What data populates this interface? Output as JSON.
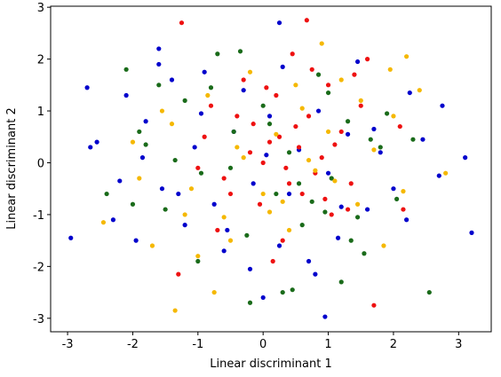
{
  "chart_data": {
    "type": "scatter",
    "xlabel": "Linear discriminant 1",
    "ylabel": "Linear discriminant 2",
    "xlim": [
      -3.26,
      3.5
    ],
    "ylim": [
      -3.26,
      3.02
    ],
    "xticks": [
      -3,
      -2,
      -1,
      0,
      1,
      2,
      3
    ],
    "yticks": [
      -3,
      -2,
      -1,
      0,
      1,
      2,
      3
    ],
    "series": [
      {
        "color": "#0000cc",
        "x": [
          -2.95,
          3.2,
          0.95,
          2.75,
          3.1,
          -2.7,
          -2.55,
          -2.3,
          -2.1,
          -1.95,
          -1.8,
          -1.6,
          -1.55,
          -1.4,
          -1.2,
          -1.05,
          -0.9,
          -0.75,
          -0.6,
          -0.45,
          -0.3,
          -0.15,
          0.0,
          0.1,
          0.25,
          0.4,
          0.55,
          0.7,
          0.85,
          1.0,
          1.15,
          1.3,
          1.45,
          1.6,
          1.8,
          2.0,
          2.25,
          2.45,
          2.7,
          -2.2,
          -1.85,
          -1.3,
          -0.95,
          -0.2,
          0.3,
          0.8,
          1.2,
          1.7,
          2.2,
          -0.55,
          0.05,
          -2.65,
          0.25,
          -1.6
        ],
        "y": [
          -1.45,
          -1.35,
          -2.97,
          1.1,
          0.1,
          1.45,
          0.4,
          -1.1,
          1.3,
          -1.5,
          0.8,
          2.2,
          -0.5,
          1.6,
          -1.2,
          0.3,
          1.75,
          -0.8,
          -1.7,
          0.6,
          1.4,
          -0.4,
          -2.6,
          0.9,
          2.7,
          -0.6,
          0.25,
          -1.9,
          1.0,
          -0.2,
          -1.45,
          0.55,
          1.95,
          -0.9,
          0.2,
          -0.5,
          1.35,
          0.45,
          -0.25,
          -0.35,
          0.1,
          -0.6,
          0.95,
          -2.05,
          1.85,
          -2.15,
          -0.85,
          0.65,
          -1.1,
          -1.3,
          0.15,
          0.3,
          -1.6,
          1.9
        ]
      },
      {
        "color": "#ee1111",
        "x": [
          -1.25,
          0.67,
          1.7,
          -1.3,
          2.15,
          -0.9,
          -0.6,
          -0.4,
          -0.2,
          -0.05,
          0.1,
          0.2,
          0.35,
          0.5,
          0.6,
          0.75,
          0.9,
          1.05,
          1.2,
          1.35,
          1.5,
          -0.7,
          -0.3,
          0.0,
          0.3,
          0.55,
          0.8,
          1.0,
          1.3,
          -0.5,
          0.15,
          0.45,
          0.7,
          1.1,
          1.6,
          2.1,
          -1.0,
          -0.15,
          0.4,
          0.95,
          -0.8,
          0.25,
          1.4,
          0.05
        ],
        "y": [
          2.7,
          2.75,
          -2.75,
          -2.15,
          -0.9,
          0.5,
          -0.3,
          0.9,
          0.2,
          -0.8,
          0.4,
          1.3,
          -0.1,
          0.7,
          -0.6,
          1.8,
          0.1,
          -1.0,
          0.6,
          -0.4,
          1.1,
          -1.3,
          1.6,
          0.0,
          -1.5,
          0.3,
          -0.2,
          1.5,
          -0.9,
          -0.6,
          -1.9,
          2.1,
          0.9,
          0.35,
          2.0,
          0.7,
          -0.1,
          0.75,
          -0.4,
          -0.7,
          1.1,
          0.5,
          1.7,
          1.45
        ]
      },
      {
        "color": "#1a6b1a",
        "x": [
          2.55,
          0.45,
          -0.2,
          -2.4,
          -2.1,
          -1.8,
          -1.5,
          -1.2,
          -0.95,
          -0.7,
          -0.45,
          -0.25,
          0.0,
          0.2,
          0.4,
          0.6,
          0.85,
          1.05,
          1.3,
          1.55,
          1.8,
          2.05,
          -1.6,
          -1.0,
          -0.5,
          0.1,
          0.55,
          1.0,
          1.45,
          1.9,
          -2.0,
          -1.35,
          -0.8,
          0.3,
          0.75,
          1.2,
          1.65,
          -0.35,
          0.95,
          1.35,
          -1.9,
          2.3
        ],
        "y": [
          -2.5,
          -2.45,
          -2.7,
          -0.6,
          1.8,
          0.35,
          -0.9,
          1.2,
          -0.2,
          2.1,
          0.6,
          -1.4,
          1.1,
          -0.6,
          0.2,
          -1.2,
          1.7,
          -0.3,
          0.8,
          -1.75,
          0.3,
          -0.7,
          1.5,
          -1.9,
          -0.1,
          0.75,
          -0.4,
          1.35,
          -1.05,
          0.95,
          -0.8,
          0.05,
          1.45,
          -2.5,
          -0.75,
          -2.3,
          0.45,
          2.15,
          -0.95,
          -1.5,
          0.6,
          0.45
        ]
      },
      {
        "color": "#f5b800",
        "x": [
          -1.35,
          -0.75,
          2.2,
          2.8,
          2.4,
          -2.45,
          -2.0,
          -1.7,
          -1.4,
          -1.1,
          -0.85,
          -0.6,
          -0.4,
          -0.2,
          0.0,
          0.2,
          0.4,
          0.6,
          0.8,
          1.0,
          1.2,
          1.45,
          1.7,
          1.95,
          2.15,
          -1.55,
          -1.0,
          -0.3,
          0.3,
          0.9,
          1.5,
          2.0,
          -0.5,
          0.5,
          1.1,
          -1.2,
          0.7,
          1.85,
          -1.9,
          0.1
        ],
        "y": [
          -2.85,
          -2.5,
          2.05,
          -0.2,
          1.4,
          -1.15,
          0.4,
          -1.6,
          0.75,
          -0.5,
          1.3,
          -1.05,
          0.3,
          1.75,
          -0.6,
          0.55,
          -1.3,
          1.05,
          -0.15,
          0.6,
          1.6,
          -0.8,
          0.25,
          1.8,
          -0.55,
          1.0,
          -1.8,
          0.1,
          -0.75,
          2.3,
          1.2,
          0.9,
          -1.5,
          1.5,
          -0.35,
          -1.0,
          0.05,
          -1.6,
          -0.3,
          -0.95
        ]
      }
    ]
  }
}
